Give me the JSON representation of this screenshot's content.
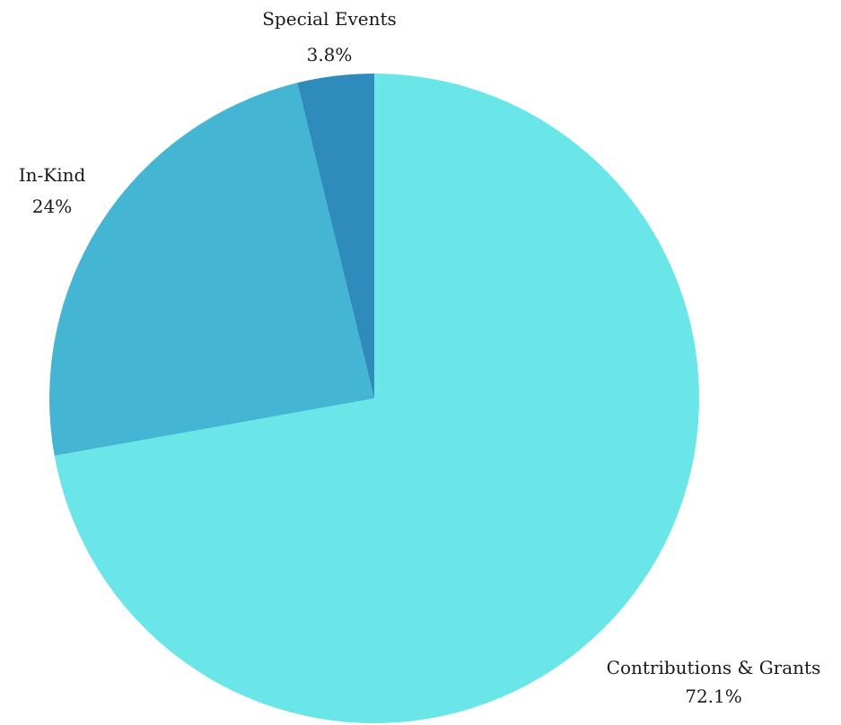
{
  "chart_data": {
    "type": "pie",
    "title": "",
    "start": "top",
    "direction": "clockwise",
    "slices": [
      {
        "label": "Contributions & Grants",
        "percent_label": "72.1%",
        "value": 72.1,
        "color": "#6ae5e8"
      },
      {
        "label": "In-Kind",
        "percent_label": "24%",
        "value": 24.0,
        "color": "#44b6d4"
      },
      {
        "label": "Special Events",
        "percent_label": "3.8%",
        "value": 3.8,
        "color": "#2e8bbb"
      }
    ]
  }
}
